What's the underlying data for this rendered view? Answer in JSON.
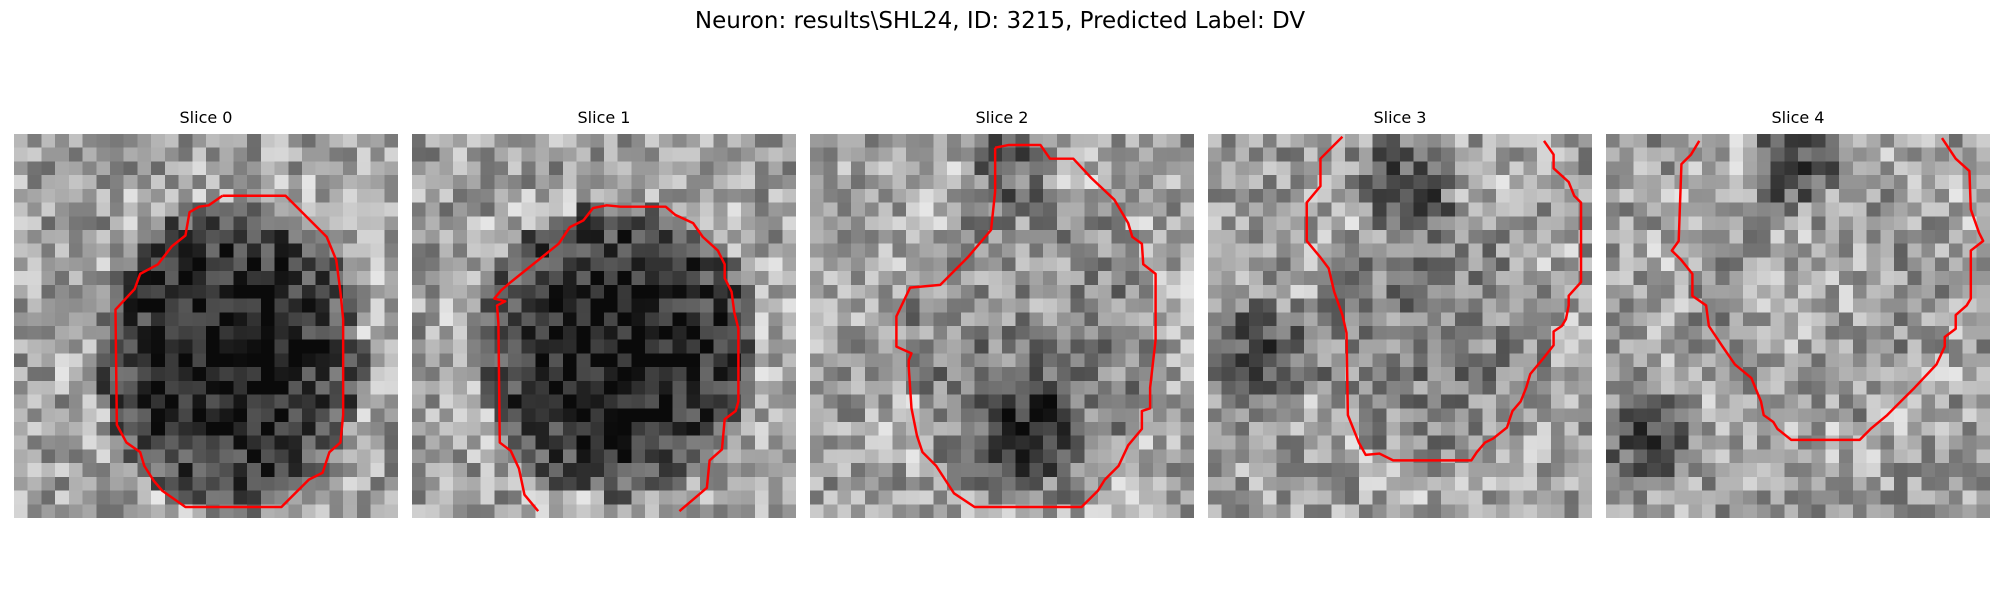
{
  "figure": {
    "title": "Neuron: results\\SHL24, ID: 3215, Predicted Label: DV"
  },
  "slices": [
    {
      "title": "Slice 0"
    },
    {
      "title": "Slice 1"
    },
    {
      "title": "Slice 2"
    },
    {
      "title": "Slice 3"
    },
    {
      "title": "Slice 4"
    }
  ],
  "colors": {
    "contour": "#ff0000",
    "background": "#ffffff"
  },
  "colormap": "gray"
}
